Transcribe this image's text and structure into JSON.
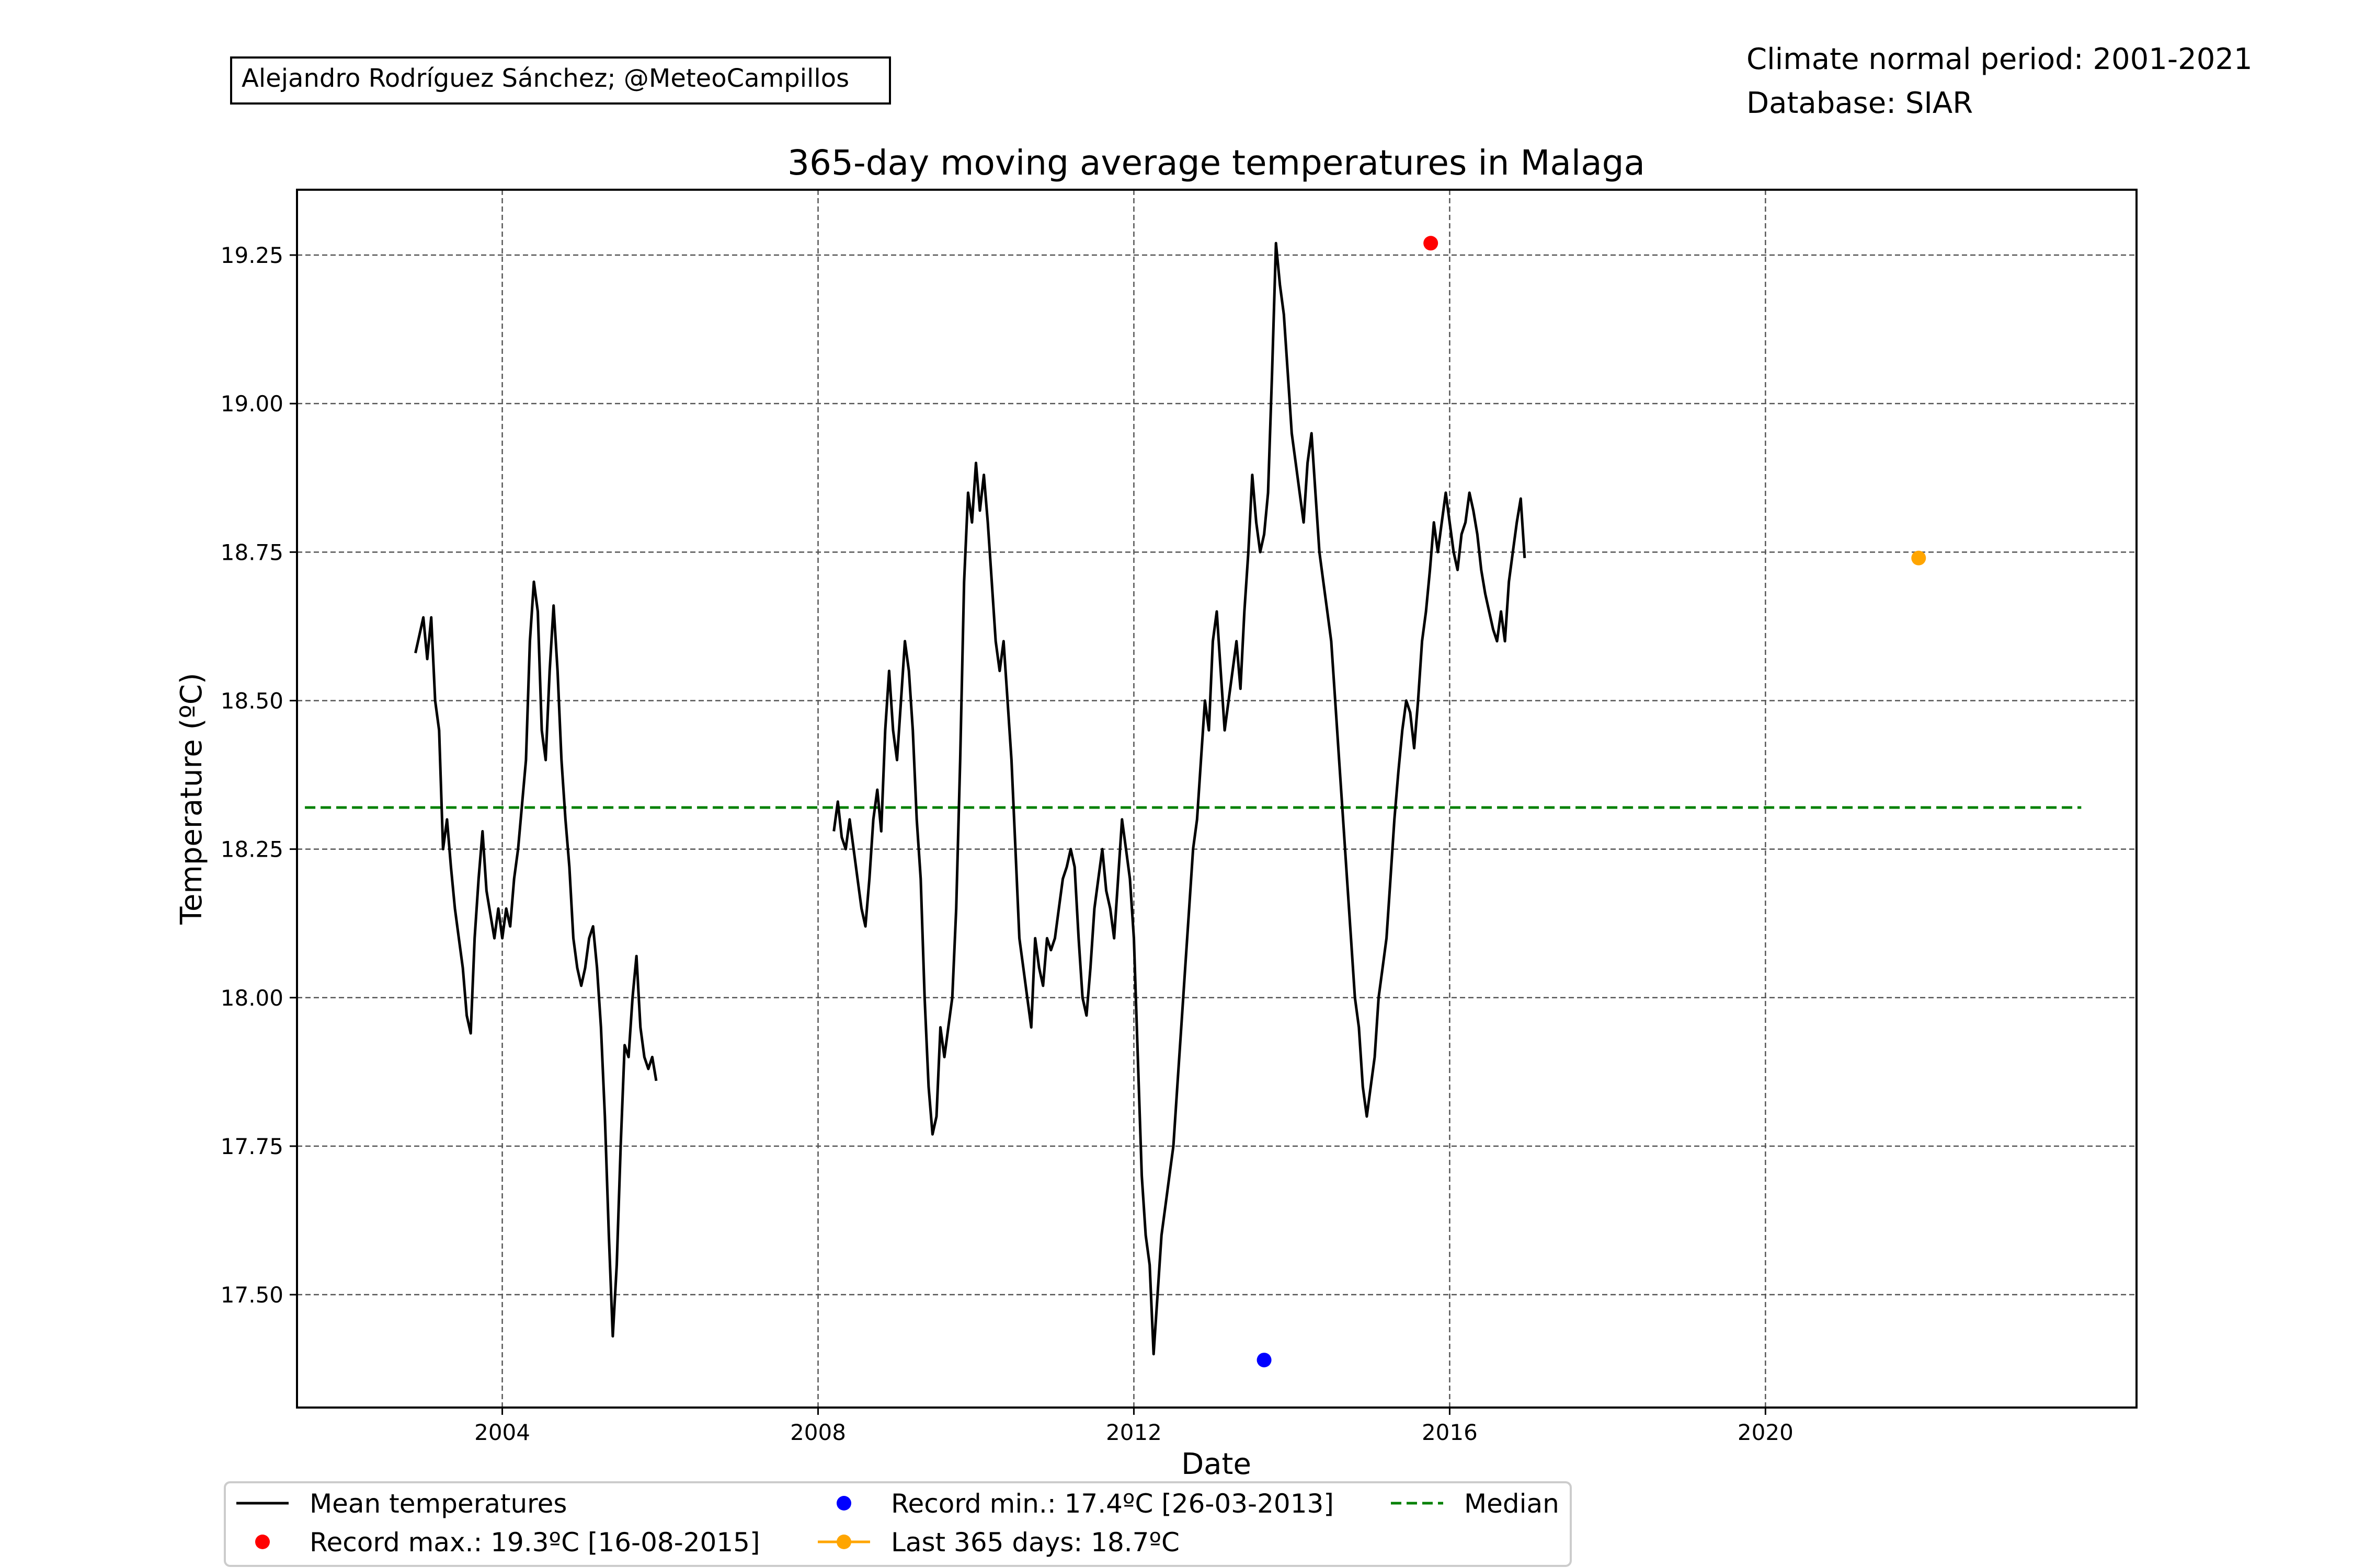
{
  "header": {
    "author": "Alejandro Rodríguez Sánchez; @MeteoCampillos",
    "climate_period": "Climate normal period: 2001-2021",
    "database": "Database: SIAR"
  },
  "chart_data": {
    "type": "line",
    "title": "365-day moving average temperatures in Malaga",
    "xlabel": "Date",
    "ylabel": "Temperature (ºC)",
    "xlim": [
      2001.4,
      2024.7
    ],
    "ylim": [
      17.31,
      19.36
    ],
    "x_ticks": [
      2004,
      2008,
      2012,
      2016,
      2020
    ],
    "y_ticks": [
      "17.50",
      "17.75",
      "18.00",
      "18.25",
      "18.50",
      "18.75",
      "19.00",
      "19.25"
    ],
    "grid": true,
    "legend_position": "below plot",
    "colors": {
      "mean": "#000000",
      "record_max": "#ff0000",
      "record_min": "#0000ff",
      "last_365": "#ffa500",
      "median": "#008000",
      "grid": "#555555"
    },
    "series": [
      {
        "name": "Mean temperatures",
        "segments": [
          [
            [
              2002.9,
              18.58
            ],
            [
              2003.0,
              18.64
            ],
            [
              2003.05,
              18.57
            ],
            [
              2003.1,
              18.64
            ],
            [
              2003.15,
              18.5
            ],
            [
              2003.2,
              18.45
            ],
            [
              2003.25,
              18.25
            ],
            [
              2003.3,
              18.3
            ],
            [
              2003.35,
              18.22
            ],
            [
              2003.4,
              18.15
            ],
            [
              2003.45,
              18.1
            ],
            [
              2003.5,
              18.05
            ],
            [
              2003.55,
              17.97
            ],
            [
              2003.6,
              17.94
            ],
            [
              2003.65,
              18.1
            ],
            [
              2003.7,
              18.2
            ],
            [
              2003.75,
              18.28
            ],
            [
              2003.8,
              18.18
            ],
            [
              2003.85,
              18.14
            ],
            [
              2003.9,
              18.1
            ],
            [
              2003.95,
              18.15
            ],
            [
              2004.0,
              18.1
            ],
            [
              2004.05,
              18.15
            ],
            [
              2004.1,
              18.12
            ],
            [
              2004.15,
              18.2
            ],
            [
              2004.2,
              18.25
            ],
            [
              2004.3,
              18.4
            ],
            [
              2004.35,
              18.6
            ],
            [
              2004.4,
              18.7
            ],
            [
              2004.45,
              18.65
            ],
            [
              2004.5,
              18.45
            ],
            [
              2004.55,
              18.4
            ],
            [
              2004.6,
              18.55
            ],
            [
              2004.65,
              18.66
            ],
            [
              2004.7,
              18.55
            ],
            [
              2004.75,
              18.4
            ],
            [
              2004.8,
              18.3
            ],
            [
              2004.85,
              18.22
            ],
            [
              2004.9,
              18.1
            ],
            [
              2004.95,
              18.05
            ],
            [
              2005.0,
              18.02
            ],
            [
              2005.05,
              18.05
            ],
            [
              2005.1,
              18.1
            ],
            [
              2005.15,
              18.12
            ],
            [
              2005.2,
              18.05
            ],
            [
              2005.25,
              17.95
            ],
            [
              2005.3,
              17.8
            ],
            [
              2005.35,
              17.6
            ],
            [
              2005.4,
              17.43
            ],
            [
              2005.45,
              17.55
            ],
            [
              2005.5,
              17.75
            ],
            [
              2005.55,
              17.92
            ],
            [
              2005.6,
              17.9
            ],
            [
              2005.65,
              18.0
            ],
            [
              2005.7,
              18.07
            ],
            [
              2005.75,
              17.95
            ],
            [
              2005.8,
              17.9
            ],
            [
              2005.85,
              17.88
            ],
            [
              2005.9,
              17.9
            ],
            [
              2005.95,
              17.86
            ]
          ],
          [
            [
              2008.2,
              18.28
            ],
            [
              2008.25,
              18.33
            ],
            [
              2008.3,
              18.27
            ],
            [
              2008.35,
              18.25
            ],
            [
              2008.4,
              18.3
            ],
            [
              2008.45,
              18.25
            ],
            [
              2008.5,
              18.2
            ],
            [
              2008.55,
              18.15
            ],
            [
              2008.6,
              18.12
            ],
            [
              2008.65,
              18.2
            ],
            [
              2008.7,
              18.3
            ],
            [
              2008.75,
              18.35
            ],
            [
              2008.8,
              18.28
            ],
            [
              2008.85,
              18.45
            ],
            [
              2008.9,
              18.55
            ],
            [
              2008.95,
              18.45
            ],
            [
              2009.0,
              18.4
            ],
            [
              2009.05,
              18.5
            ],
            [
              2009.1,
              18.6
            ],
            [
              2009.15,
              18.55
            ],
            [
              2009.2,
              18.45
            ],
            [
              2009.25,
              18.3
            ],
            [
              2009.3,
              18.2
            ],
            [
              2009.35,
              18.0
            ],
            [
              2009.4,
              17.85
            ],
            [
              2009.45,
              17.77
            ],
            [
              2009.5,
              17.8
            ],
            [
              2009.55,
              17.95
            ],
            [
              2009.6,
              17.9
            ],
            [
              2009.65,
              17.95
            ],
            [
              2009.7,
              18.0
            ],
            [
              2009.75,
              18.15
            ],
            [
              2009.8,
              18.4
            ],
            [
              2009.85,
              18.7
            ],
            [
              2009.9,
              18.85
            ],
            [
              2009.95,
              18.8
            ],
            [
              2010.0,
              18.9
            ],
            [
              2010.05,
              18.82
            ],
            [
              2010.1,
              18.88
            ],
            [
              2010.15,
              18.8
            ],
            [
              2010.2,
              18.7
            ],
            [
              2010.25,
              18.6
            ],
            [
              2010.3,
              18.55
            ],
            [
              2010.35,
              18.6
            ],
            [
              2010.4,
              18.5
            ],
            [
              2010.45,
              18.4
            ],
            [
              2010.5,
              18.25
            ],
            [
              2010.55,
              18.1
            ],
            [
              2010.6,
              18.05
            ],
            [
              2010.65,
              18.0
            ],
            [
              2010.7,
              17.95
            ],
            [
              2010.75,
              18.1
            ],
            [
              2010.8,
              18.05
            ],
            [
              2010.85,
              18.02
            ],
            [
              2010.9,
              18.1
            ],
            [
              2010.95,
              18.08
            ],
            [
              2011.0,
              18.1
            ],
            [
              2011.05,
              18.15
            ],
            [
              2011.1,
              18.2
            ],
            [
              2011.15,
              18.22
            ],
            [
              2011.2,
              18.25
            ],
            [
              2011.25,
              18.22
            ],
            [
              2011.3,
              18.1
            ],
            [
              2011.35,
              18.0
            ],
            [
              2011.4,
              17.97
            ],
            [
              2011.45,
              18.05
            ],
            [
              2011.5,
              18.15
            ],
            [
              2011.55,
              18.2
            ],
            [
              2011.6,
              18.25
            ],
            [
              2011.65,
              18.18
            ],
            [
              2011.7,
              18.15
            ],
            [
              2011.75,
              18.1
            ],
            [
              2011.8,
              18.2
            ],
            [
              2011.85,
              18.3
            ],
            [
              2011.9,
              18.25
            ],
            [
              2011.95,
              18.2
            ],
            [
              2012.0,
              18.1
            ],
            [
              2012.05,
              17.9
            ],
            [
              2012.1,
              17.7
            ],
            [
              2012.15,
              17.6
            ],
            [
              2012.2,
              17.55
            ],
            [
              2012.25,
              17.4
            ],
            [
              2012.3,
              17.5
            ],
            [
              2012.35,
              17.6
            ],
            [
              2012.4,
              17.65
            ],
            [
              2012.45,
              17.7
            ],
            [
              2012.5,
              17.75
            ],
            [
              2012.55,
              17.85
            ],
            [
              2012.6,
              17.95
            ],
            [
              2012.65,
              18.05
            ],
            [
              2012.7,
              18.15
            ],
            [
              2012.75,
              18.25
            ],
            [
              2012.8,
              18.3
            ],
            [
              2012.85,
              18.4
            ],
            [
              2012.9,
              18.5
            ],
            [
              2012.95,
              18.45
            ],
            [
              2013.0,
              18.6
            ],
            [
              2013.05,
              18.65
            ],
            [
              2013.1,
              18.55
            ],
            [
              2013.15,
              18.45
            ],
            [
              2013.2,
              18.5
            ],
            [
              2013.25,
              18.55
            ],
            [
              2013.3,
              18.6
            ],
            [
              2013.35,
              18.52
            ],
            [
              2013.4,
              18.65
            ],
            [
              2013.45,
              18.75
            ],
            [
              2013.5,
              18.88
            ],
            [
              2013.55,
              18.8
            ],
            [
              2013.6,
              18.75
            ],
            [
              2013.65,
              18.78
            ],
            [
              2013.7,
              18.85
            ],
            [
              2013.75,
              19.05
            ],
            [
              2013.8,
              19.27
            ],
            [
              2013.85,
              19.2
            ],
            [
              2013.9,
              19.15
            ],
            [
              2013.95,
              19.05
            ],
            [
              2014.0,
              18.95
            ],
            [
              2014.05,
              18.9
            ],
            [
              2014.1,
              18.85
            ],
            [
              2014.15,
              18.8
            ],
            [
              2014.2,
              18.9
            ],
            [
              2014.25,
              18.95
            ],
            [
              2014.3,
              18.85
            ],
            [
              2014.35,
              18.75
            ],
            [
              2014.4,
              18.7
            ],
            [
              2014.45,
              18.65
            ],
            [
              2014.5,
              18.6
            ],
            [
              2014.55,
              18.5
            ],
            [
              2014.6,
              18.4
            ],
            [
              2014.65,
              18.3
            ],
            [
              2014.7,
              18.2
            ],
            [
              2014.75,
              18.1
            ],
            [
              2014.8,
              18.0
            ],
            [
              2014.85,
              17.95
            ],
            [
              2014.9,
              17.85
            ],
            [
              2014.95,
              17.8
            ],
            [
              2015.0,
              17.85
            ],
            [
              2015.05,
              17.9
            ],
            [
              2015.1,
              18.0
            ],
            [
              2015.15,
              18.05
            ],
            [
              2015.2,
              18.1
            ],
            [
              2015.25,
              18.2
            ],
            [
              2015.3,
              18.3
            ],
            [
              2015.35,
              18.38
            ],
            [
              2015.4,
              18.45
            ],
            [
              2015.45,
              18.5
            ],
            [
              2015.5,
              18.48
            ],
            [
              2015.55,
              18.42
            ],
            [
              2015.6,
              18.5
            ],
            [
              2015.65,
              18.6
            ],
            [
              2015.7,
              18.65
            ],
            [
              2015.75,
              18.72
            ],
            [
              2015.8,
              18.8
            ],
            [
              2015.85,
              18.75
            ],
            [
              2015.9,
              18.8
            ],
            [
              2015.95,
              18.85
            ],
            [
              2016.0,
              18.8
            ],
            [
              2016.05,
              18.75
            ],
            [
              2016.1,
              18.72
            ],
            [
              2016.15,
              18.78
            ],
            [
              2016.2,
              18.8
            ],
            [
              2016.25,
              18.85
            ],
            [
              2016.3,
              18.82
            ],
            [
              2016.35,
              18.78
            ],
            [
              2016.4,
              18.72
            ],
            [
              2016.45,
              18.68
            ],
            [
              2016.5,
              18.65
            ],
            [
              2016.55,
              18.62
            ],
            [
              2016.6,
              18.6
            ],
            [
              2016.65,
              18.65
            ],
            [
              2016.7,
              18.6
            ],
            [
              2016.75,
              18.7
            ],
            [
              2016.8,
              18.75
            ],
            [
              2016.85,
              18.8
            ],
            [
              2016.9,
              18.84
            ],
            [
              2016.95,
              18.74
            ]
          ]
        ]
      },
      {
        "name": "Median",
        "value": 18.32,
        "x_range": [
          2001.5,
          2024.0
        ]
      }
    ],
    "points": [
      {
        "name": "Record max.: 19.3ºC [16-08-2015]",
        "x": 2015.76,
        "y": 19.27
      },
      {
        "name": "Record min.: 17.4ºC [26-03-2013]",
        "x": 2013.65,
        "y": 17.39
      },
      {
        "name": "Last 365 days: 18.7ºC",
        "x": 2021.94,
        "y": 18.74
      }
    ],
    "legend": [
      "Mean temperatures",
      "Record max.: 19.3ºC [16-08-2015]",
      "Record min.: 17.4ºC [26-03-2013]",
      "Last 365 days: 18.7ºC",
      "Median"
    ]
  }
}
